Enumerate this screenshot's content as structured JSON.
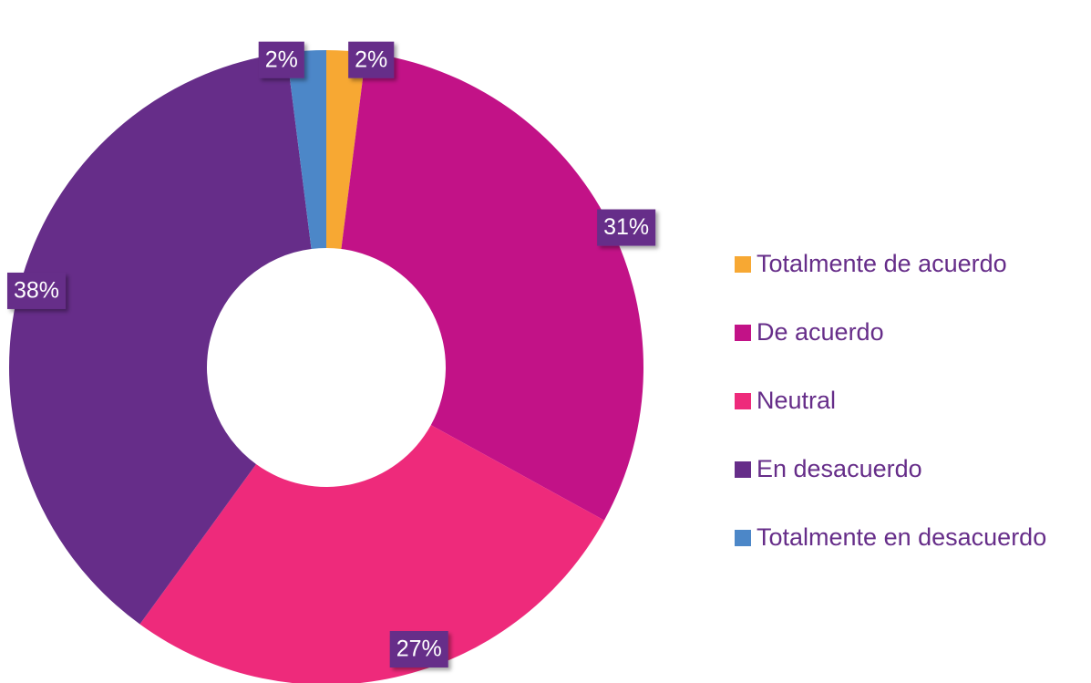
{
  "chart_data": {
    "type": "donut",
    "categories": [
      "Totalmente de acuerdo",
      "De acuerdo",
      "Neutral",
      "En desacuerdo",
      "Totalmente en desacuerdo"
    ],
    "values": [
      2,
      31,
      27,
      38,
      2
    ],
    "value_labels": [
      "2%",
      "31%",
      "27%",
      "38%",
      "2%"
    ],
    "colors": [
      "#f7a833",
      "#c21287",
      "#ee2a7b",
      "#662d89",
      "#4c87c8"
    ],
    "legend": "right"
  }
}
